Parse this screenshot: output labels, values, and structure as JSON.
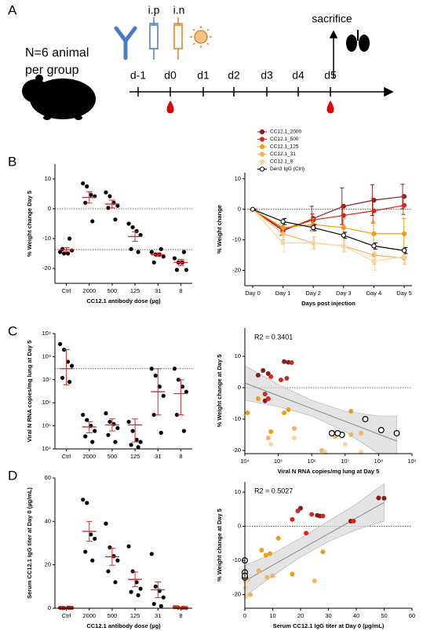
{
  "schematic": {
    "panel_label": "A",
    "group_text": [
      "N=6 animal",
      "per group"
    ],
    "routes": [
      "i.p",
      "i.n"
    ],
    "endpoint": "sacrifice",
    "days": [
      "d-1",
      "d0",
      "d1",
      "d2",
      "d3",
      "d4",
      "d5"
    ]
  },
  "chart_data": [
    {
      "type": "strip",
      "panel_label": "B",
      "ylabel": "% Weight change Day 5",
      "xlabel": "CC12.1 antibody dose (µg)",
      "categories": [
        "Ctrl",
        "2000",
        "500",
        "125",
        "31",
        "8"
      ],
      "values": [
        [
          -14.5,
          -15,
          -15,
          -14,
          -13.5,
          -10
        ],
        [
          8.5,
          7.5,
          4.7,
          4.2,
          2,
          -4.2
        ],
        [
          5.5,
          4.2,
          2,
          1,
          0.3,
          -3.6
        ],
        [
          -5,
          -6.2,
          -7.5,
          -8.8,
          -13.5,
          -14.5
        ],
        [
          -14.5,
          -15.3,
          -15.3,
          -16,
          -18,
          -13.5
        ],
        [
          -16.6,
          -18,
          -18,
          -20.5,
          -20.5,
          -14.5
        ]
      ],
      "point_colors": [
        "#000000",
        "#000000",
        "#000000",
        "#000000",
        "#000000",
        "#000000"
      ],
      "means": [
        -13.7,
        3.8,
        1.6,
        -9.3,
        -15.4,
        -18.0
      ],
      "errors": [
        0.7,
        1.9,
        1.3,
        1.6,
        0.6,
        1.0
      ],
      "mean_color": "#d62728",
      "ylim": [
        -25,
        15
      ],
      "yticks": [
        -20,
        -10,
        0,
        10
      ],
      "hlines": [
        0,
        -13.7
      ]
    },
    {
      "type": "line",
      "ylabel": "% Weight change",
      "xlabel": "Days post injection",
      "categories": [
        "Day 0",
        "Day 1",
        "Day 2",
        "Day 3",
        "Day 4",
        "Day 5"
      ],
      "series": [
        {
          "name": "CC12.1_2000",
          "color": "#8b1a1a",
          "values": [
            0,
            -7,
            -3,
            1,
            3,
            4.2
          ],
          "errors": [
            0,
            1.5,
            4,
            6,
            5,
            4
          ]
        },
        {
          "name": "CC12.1_500",
          "color": "#d9261c",
          "values": [
            0,
            -6.5,
            -3.5,
            -2,
            -0.5,
            1.3
          ],
          "errors": [
            0,
            1,
            2,
            3,
            4,
            3
          ]
        },
        {
          "name": "CC12.1_125",
          "color": "#f39c12",
          "values": [
            0,
            -6,
            -5,
            -6,
            -8,
            -8
          ],
          "errors": [
            0,
            2,
            2,
            3,
            4,
            5
          ]
        },
        {
          "name": "CC12.1_31",
          "color": "#f5b060",
          "values": [
            0,
            -8,
            -11,
            -12,
            -15,
            -16
          ],
          "errors": [
            0,
            2,
            2,
            2,
            3,
            2
          ]
        },
        {
          "name": "CC12.1_8",
          "color": "#f9d49a",
          "values": [
            0,
            -11,
            -11,
            -12,
            -17,
            -15.5
          ],
          "errors": [
            0,
            3,
            2,
            2,
            3,
            2
          ]
        },
        {
          "name": "Den3 IgG (Ctrl)",
          "color": "#ffffff",
          "edgecolor": "#000000",
          "values": [
            0,
            -4,
            -6,
            -8.5,
            -12,
            -13.5
          ],
          "errors": [
            0,
            1,
            1,
            1,
            1,
            1
          ]
        }
      ],
      "ylim": [
        -25,
        12
      ],
      "yticks": [
        -20,
        -10,
        0,
        10
      ],
      "hlines": [
        0
      ],
      "legend": "above"
    },
    {
      "type": "strip",
      "panel_label": "C",
      "ylabel": "Viral N RNA copies/mg lung at Day 5",
      "categories": [
        "Ctrl",
        "2000",
        "500",
        "125",
        "31",
        "8"
      ],
      "values": [
        [
          350000000,
          200000000,
          60000000,
          40000000,
          12000000,
          8000000
        ],
        [
          300000,
          180000,
          100000,
          60000,
          35000,
          20000
        ],
        [
          350000,
          150000,
          120000,
          80000,
          40000,
          20000
        ],
        [
          150000,
          60000,
          25000,
          20000,
          15000,
          12000
        ],
        [
          30000000,
          15000000,
          5000000,
          2000000,
          300000,
          50000
        ],
        [
          30000000,
          10000000,
          5000000,
          3000000,
          300000,
          60000
        ]
      ],
      "point_colors": [
        "#000000",
        "#000000",
        "#000000",
        "#000000",
        "#000000",
        "#000000"
      ],
      "means": [
        30000000,
        90000,
        110000,
        110000,
        3000000,
        2500000
      ],
      "error_low": [
        6000000,
        50000,
        60000,
        20000,
        300000,
        300000
      ],
      "error_high": [
        200000000,
        150000,
        200000,
        200000,
        30000000,
        10000000
      ],
      "mean_color": "#d62728",
      "yscale": "log",
      "ylim": [
        10000,
        1000000000
      ],
      "yticks": [
        {
          "value": 10000,
          "label": "10⁴"
        },
        {
          "value": 100000,
          "label": "10⁵"
        },
        {
          "value": 1000000,
          "label": "10⁶"
        },
        {
          "value": 10000000,
          "label": "10⁷"
        },
        {
          "value": 100000000,
          "label": "10⁸"
        },
        {
          "value": 1000000000,
          "label": "10⁹"
        }
      ],
      "hlines": [
        30000000
      ]
    },
    {
      "type": "scatter",
      "ylabel": "% Weight change at Day 5",
      "xlabel": "Viral N RNA copies/mg lung at Day 5",
      "annotation": "R2 = 0.3401",
      "xscale": "log",
      "xlim": [
        10000,
        1000000000
      ],
      "xticks": [
        {
          "value": 10000,
          "label": "10⁴"
        },
        {
          "value": 100000,
          "label": "10⁵"
        },
        {
          "value": 1000000,
          "label": "10⁶"
        },
        {
          "value": 10000000,
          "label": "10⁷"
        },
        {
          "value": 100000000,
          "label": "10⁸"
        },
        {
          "value": 1000000000,
          "label": "10⁹"
        }
      ],
      "ylim": [
        -21,
        19
      ],
      "yticks": [
        -20,
        -10,
        0,
        10
      ],
      "hlines": [
        0
      ],
      "series": [
        {
          "color": "#8b1a1a",
          "x": [
            35000,
            50000,
            150000,
            200000,
            25000,
            40000
          ],
          "values": [
            5.5,
            4.5,
            8.3,
            8.1,
            4,
            -4.2
          ]
        },
        {
          "color": "#d9261c",
          "x": [
            60000,
            120000,
            250000,
            40000,
            180000,
            50000
          ],
          "values": [
            3.5,
            2.5,
            8,
            -2,
            3,
            -3.5
          ]
        },
        {
          "color": "#f39c12",
          "x": [
            12000,
            25000,
            60000,
            150000,
            200000,
            15000000
          ],
          "values": [
            -8,
            -3.5,
            -14,
            -8,
            -7,
            -7.5
          ]
        },
        {
          "color": "#f5b060",
          "x": [
            30000000,
            15000000,
            5000000,
            2000000,
            300000,
            50000
          ],
          "values": [
            -14.5,
            -15,
            -15.5,
            -20,
            -13,
            -16
          ]
        },
        {
          "color": "#f9d49a",
          "x": [
            30000000,
            10000000,
            5000000,
            2500000,
            300000,
            60000
          ],
          "values": [
            -20.5,
            -18,
            -14.5,
            -20.5,
            -16,
            -18
          ]
        },
        {
          "color": "#ffffff",
          "edgecolor": "#000000",
          "x": [
            350000000,
            120000000,
            40000000,
            8000000,
            6000000,
            4000000
          ],
          "values": [
            -14.5,
            -13.5,
            -10,
            -15,
            -14.5,
            -14.5
          ]
        }
      ],
      "fit": {
        "x": [
          10000,
          350000000
        ],
        "y": [
          1.5,
          -17
        ],
        "color": "#888888"
      },
      "band": {
        "x": [
          10000,
          100000,
          1000000,
          10000000,
          100000000,
          350000000
        ],
        "low": [
          -4,
          -6,
          -9,
          -14,
          -21,
          -25
        ],
        "high": [
          7,
          1,
          -4,
          -7.5,
          -9,
          -9
        ],
        "color": "#d9d9d9"
      }
    },
    {
      "type": "strip",
      "panel_label": "D",
      "ylabel": "Serum CC12.1 IgG titer at Day 0 (µg/mL)",
      "xlabel": "CC12.1 antibody dose (µg)",
      "categories": [
        "Ctrl",
        "2000",
        "500",
        "125",
        "31",
        "8"
      ],
      "values": [
        [
          0.2,
          0.1,
          0.3,
          0.2,
          0.1,
          0.2
        ],
        [
          50,
          48.5,
          34,
          32,
          26,
          22
        ],
        [
          39,
          28,
          24,
          22,
          17,
          12
        ],
        [
          28.5,
          17,
          12,
          9,
          7.5,
          6
        ],
        [
          25,
          10,
          8,
          5,
          2,
          1
        ],
        [
          0.5,
          0.3,
          0.2,
          0.1,
          0.5,
          0.3
        ]
      ],
      "point_colors": [
        "#8b1a1a",
        "#000000",
        "#000000",
        "#000000",
        "#000000",
        "#c0392b"
      ],
      "means": [
        0.2,
        35.4,
        23.7,
        13.3,
        8.5,
        0.3
      ],
      "errors": [
        0.03,
        4.6,
        3.9,
        3.4,
        3.6,
        0.1
      ],
      "mean_color": "#d62728",
      "ylim": [
        0,
        60
      ],
      "yticks": [
        0,
        20,
        40,
        60
      ]
    },
    {
      "type": "scatter",
      "ylabel": "% Weight change at Day 5",
      "xlabel": "Serum CC12.1 IgG titer at Day 0 (µg/mL)",
      "annotation": "R2 = 0.5027",
      "xlim": [
        0,
        60
      ],
      "xticks": [
        0,
        10,
        20,
        30,
        40,
        50,
        60
      ],
      "ylim": [
        -24,
        13
      ],
      "yticks": [
        -20,
        -10,
        0,
        10
      ],
      "hlines": [
        0
      ],
      "series": [
        {
          "color": "#8b1a1a",
          "x": [
            48,
            50,
            20,
            27,
            26,
            38
          ],
          "values": [
            8.3,
            8.2,
            5.3,
            3,
            3.2,
            1.5
          ]
        },
        {
          "color": "#d9261c",
          "x": [
            19,
            28,
            39,
            22,
            17,
            24
          ],
          "values": [
            4.5,
            3,
            1.5,
            -2,
            2,
            3.5
          ]
        },
        {
          "color": "#f39c12",
          "x": [
            9,
            6,
            17,
            28,
            12,
            7.5
          ],
          "values": [
            -8,
            -7,
            -14,
            -7.5,
            -3.5,
            -8.5
          ]
        },
        {
          "color": "#f5b060",
          "x": [
            25,
            10,
            8,
            5,
            2,
            1
          ],
          "values": [
            -16,
            -14.5,
            -15,
            -13,
            -20,
            -15.5
          ]
        },
        {
          "color": "#f9d49a",
          "x": [
            0.5,
            0.3,
            0.2,
            0.1,
            0.5,
            0.3
          ],
          "values": [
            -20.5,
            -18,
            -18,
            -14.5,
            -20.5,
            -16
          ]
        },
        {
          "color": "#ffffff",
          "edgecolor": "#000000",
          "x": [
            0,
            0,
            0,
            0,
            0,
            0
          ],
          "values": [
            -10,
            -14.5,
            -14.5,
            -13.5,
            -15,
            -14.5
          ]
        }
      ],
      "fit": {
        "x": [
          0,
          50
        ],
        "y": [
          -16,
          7
        ],
        "color": "#888888"
      },
      "band": {
        "x": [
          0,
          10,
          20,
          30,
          40,
          50
        ],
        "low": [
          -20.5,
          -14.5,
          -9,
          -4.5,
          -1,
          1.5
        ],
        "high": [
          -11.5,
          -8,
          -3.5,
          1.5,
          6.5,
          12.5
        ],
        "color": "#d9d9d9"
      }
    }
  ]
}
